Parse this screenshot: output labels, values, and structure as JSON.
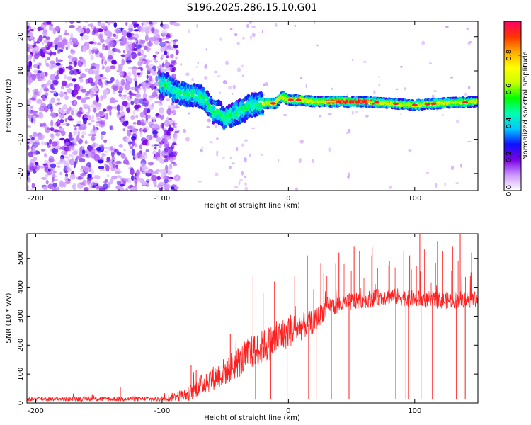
{
  "title": "S196.2025.286.15.10.G01",
  "chart_data": [
    {
      "type": "heatmap",
      "name": "spectrogram",
      "xlabel": "Height of straight line (km)",
      "ylabel": "Frequency (Hz)",
      "xlim": [
        -207,
        150
      ],
      "ylim": [
        -25,
        24.5
      ],
      "xticks": [
        -200,
        -100,
        0,
        100
      ],
      "yticks": [
        -20,
        -10,
        0,
        10,
        20
      ],
      "colorbar": {
        "label": "Normalized spectral amplitude",
        "range": [
          0,
          1
        ],
        "ticks": [
          0.0,
          0.2,
          0.4,
          0.6,
          0.8
        ],
        "tick_labels": [
          "0.0",
          "0.2",
          "0.4",
          "0.6",
          "0.8"
        ],
        "colors": [
          "#ffffff",
          "#cc99ff",
          "#7a00e6",
          "#1010ff",
          "#00c8ff",
          "#00ffb4",
          "#00ff00",
          "#c8ff00",
          "#ffff00",
          "#ffaa00",
          "#ff3300",
          "#ff0066"
        ]
      },
      "ridge": {
        "x": [
          -100,
          -95,
          -90,
          -85,
          -80,
          -75,
          -70,
          -65,
          -60,
          -55,
          -50,
          -45,
          -40,
          -35,
          -30,
          -25,
          -20,
          -15,
          -10,
          -5,
          0,
          10,
          20,
          40,
          60,
          80,
          100,
          120,
          150
        ],
        "y": [
          6,
          6,
          4,
          3.5,
          3,
          3,
          2.5,
          1.5,
          -2,
          -2,
          -4,
          -3,
          -2,
          -1.5,
          0,
          0,
          0.5,
          0.5,
          0.5,
          2.5,
          1.5,
          1.5,
          1,
          1,
          1,
          0.5,
          0,
          0.5,
          1
        ]
      }
    },
    {
      "type": "line",
      "name": "snr",
      "xlabel": "Height of straight line (km)",
      "ylabel": "SNR (10 * v/v)",
      "xlim": [
        -207,
        150
      ],
      "ylim": [
        0,
        585
      ],
      "xticks": [
        -200,
        -100,
        0,
        100
      ],
      "yticks": [
        0,
        100,
        200,
        300,
        400,
        500
      ],
      "color": "#ff2020",
      "envelope": {
        "x": [
          -207,
          -100,
          -80,
          -70,
          -50,
          -30,
          -10,
          0,
          20,
          30,
          50,
          80,
          100,
          120,
          150
        ],
        "mean": [
          14,
          14,
          30,
          60,
          110,
          170,
          220,
          250,
          280,
          330,
          350,
          370,
          360,
          355,
          360
        ],
        "noise": [
          8,
          8,
          25,
          35,
          50,
          60,
          60,
          60,
          40,
          35,
          30,
          30,
          30,
          30,
          30
        ]
      },
      "spikes": [
        [
          -133,
          55
        ],
        [
          -77,
          130
        ],
        [
          -73,
          115
        ],
        [
          -65,
          100
        ],
        [
          -46,
          240
        ],
        [
          -28,
          440
        ],
        [
          -20,
          380
        ],
        [
          -11,
          420
        ],
        [
          5,
          440
        ],
        [
          15,
          510
        ],
        [
          28,
          450
        ],
        [
          40,
          520
        ],
        [
          52,
          540
        ],
        [
          66,
          510
        ],
        [
          80,
          490
        ],
        [
          96,
          510
        ],
        [
          104,
          585
        ],
        [
          118,
          560
        ],
        [
          130,
          540
        ],
        [
          136,
          585
        ],
        [
          145,
          520
        ]
      ],
      "dropouts": [
        -26,
        -14,
        -1,
        16,
        22,
        34,
        48,
        85,
        93,
        95,
        105,
        114,
        133,
        140
      ]
    }
  ]
}
